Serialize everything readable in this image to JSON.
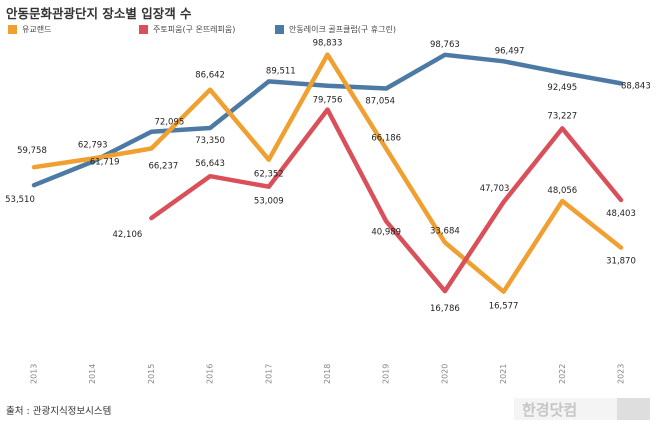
{
  "header": {
    "title": "안동문화관광단지 장소별 입장객 수"
  },
  "footer": {
    "source": "출처 : 관광지식정보시스템"
  },
  "watermark": {
    "text": "한경닷컴"
  },
  "chart_data": {
    "type": "line",
    "title": "안동문화관광단지 장소별 입장객 수",
    "xlabel": "",
    "ylabel": "",
    "categories": [
      "2013",
      "2014",
      "2015",
      "2016",
      "2017",
      "2018",
      "2019",
      "2020",
      "2021",
      "2022",
      "2023"
    ],
    "ylim": [
      0,
      100000
    ],
    "grid": false,
    "legend_position": "top",
    "series": [
      {
        "name": "유교랜드",
        "color": "#f0a030",
        "values": [
          59758,
          62793,
          66237,
          86642,
          62352,
          98833,
          66186,
          33684,
          16577,
          48056,
          31870
        ],
        "labels": [
          "59,758",
          "62,793",
          "66,237",
          "86,642",
          "62,352",
          "98,833",
          "66,186",
          "33,684",
          "16,577",
          "48,056",
          "31,870"
        ]
      },
      {
        "name": "주토피움(구 온뜨레피움)",
        "color": "#d9505a",
        "values": [
          null,
          null,
          42106,
          56643,
          53009,
          79756,
          40989,
          16786,
          47703,
          73227,
          48403
        ],
        "labels": [
          null,
          null,
          "42,106",
          "56,643",
          "53,009",
          "79,756",
          "40,989",
          "16,786",
          "47,703",
          "73,227",
          "48,403"
        ]
      },
      {
        "name": "안동레이크 골프클럽(구 휴그린)",
        "color": "#4d7aa5",
        "values": [
          53510,
          61719,
          72095,
          73350,
          89511,
          88000,
          87054,
          98763,
          96497,
          92495,
          88843
        ],
        "labels": [
          "53,510",
          "61,719",
          "72,095",
          "73,350",
          "89,511",
          null,
          "87,054",
          "98,763",
          "96,497",
          "92,495",
          "88,843"
        ]
      }
    ]
  }
}
